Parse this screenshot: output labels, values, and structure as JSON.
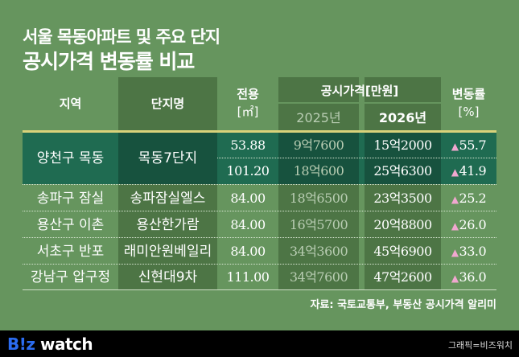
{
  "title": {
    "line1": "서울 목동아파트 및 주요 단지",
    "line2": "공시가격 변동률 비교"
  },
  "headers": {
    "region": "지역",
    "complex": "단지명",
    "area": "전용",
    "area_unit": "[㎡]",
    "price": "공시가격[만원]",
    "y2025": "2025년",
    "y2026": "2026년",
    "change": "변동률",
    "change_unit": "[%]"
  },
  "rows": [
    {
      "region": "양천구 목동",
      "complex": "목동7단지",
      "area": "53.88",
      "p2025": "9억7600",
      "p2026": "15억2000",
      "change": "55.7",
      "highlight": true
    },
    {
      "region": "",
      "complex": "",
      "area": "101.20",
      "p2025": "18억600",
      "p2026": "25억6300",
      "change": "41.9",
      "highlight": true
    },
    {
      "region": "송파구 잠실",
      "complex": "송파잠실엘스",
      "area": "84.00",
      "p2025": "18억6500",
      "p2026": "23억3500",
      "change": "25.2"
    },
    {
      "region": "용산구 이촌",
      "complex": "용산한가람",
      "area": "84.00",
      "p2025": "16억5700",
      "p2026": "20억8800",
      "change": "26.0"
    },
    {
      "region": "서초구 반포",
      "complex": "래미안원베일리",
      "area": "84.00",
      "p2025": "34억3600",
      "p2026": "45억6900",
      "change": "33.0"
    },
    {
      "region": "강남구 압구정",
      "complex": "신현대9차",
      "area": "111.00",
      "p2025": "34억7600",
      "p2026": "47억2600",
      "change": "36.0"
    }
  ],
  "up_icon": "triangle-up",
  "source": "자료: 국토교통부, 부동산 공시가격 알리미",
  "footer": {
    "logo_b": "B!z",
    "logo_w": " watch",
    "credit": "그래픽=비즈워치"
  },
  "colors": {
    "background": "#66955e",
    "highlight": "#1f6b51",
    "accent_line": "#d9d27a",
    "up": "#f0a7cf",
    "footer": "#000000"
  }
}
